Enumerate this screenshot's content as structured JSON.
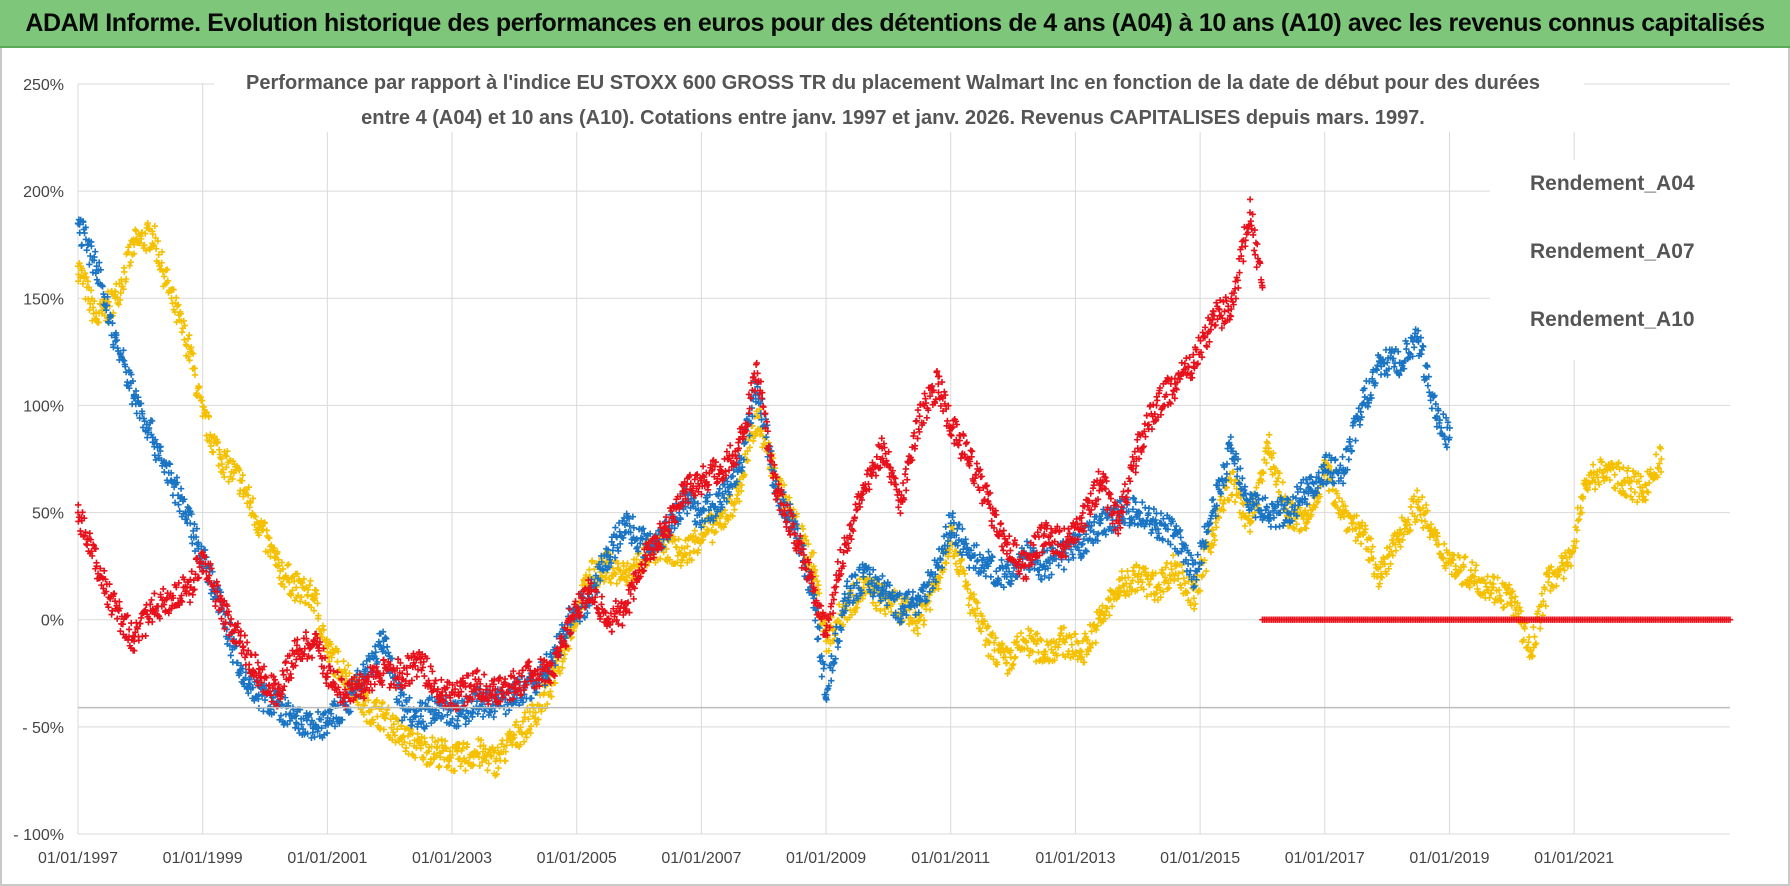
{
  "header": {
    "title": "ADAM Informe. Evolution historique des performances en euros pour des détentions de 4 ans (A04) à 10 ans (A10) avec les revenus connus capitalisés"
  },
  "colors": {
    "a04": "#f5c000",
    "a07": "#1a74c4",
    "a10": "#e8101a",
    "header_bg": "#7dc67a",
    "grid": "#d9d9d9"
  },
  "chart_data": {
    "type": "scatter",
    "title_line1": "Performance par rapport à l'indice EU STOXX 600 GROSS TR  du placement Walmart Inc en fonction de la date de début pour des durées",
    "title_line2": "entre 4 (A04) et 10 ans (A10). Cotations entre janv. 1997 et janv. 2026. Revenus CAPITALISES depuis mars. 1997.",
    "xlabel": "",
    "ylabel": "",
    "xlim": [
      1997.0,
      2023.5
    ],
    "ylim": [
      -100,
      250
    ],
    "y_ticks": [
      {
        "value": 250,
        "label": "250%"
      },
      {
        "value": 200,
        "label": "200%"
      },
      {
        "value": 150,
        "label": "150%"
      },
      {
        "value": 100,
        "label": "100%"
      },
      {
        "value": 50,
        "label": "50%"
      },
      {
        "value": 0,
        "label": "0%"
      },
      {
        "value": -50,
        "label": "- 50%"
      },
      {
        "value": -100,
        "label": "- 100%"
      }
    ],
    "x_ticks": [
      {
        "value": 1997,
        "label": "01/01/1997"
      },
      {
        "value": 1999,
        "label": "01/01/1999"
      },
      {
        "value": 2001,
        "label": "01/01/2001"
      },
      {
        "value": 2003,
        "label": "01/01/2003"
      },
      {
        "value": 2005,
        "label": "01/01/2005"
      },
      {
        "value": 2007,
        "label": "01/01/2007"
      },
      {
        "value": 2009,
        "label": "01/01/2009"
      },
      {
        "value": 2011,
        "label": "01/01/2011"
      },
      {
        "value": 2013,
        "label": "01/01/2013"
      },
      {
        "value": 2015,
        "label": "01/01/2015"
      },
      {
        "value": 2017,
        "label": "01/01/2017"
      },
      {
        "value": 2019,
        "label": "01/01/2019"
      },
      {
        "value": 2021,
        "label": "01/01/2021"
      }
    ],
    "reference_line": -41,
    "legend_position": "top-right",
    "series": [
      {
        "name": "Rendement_A04",
        "color": "#f5c000",
        "points": [
          [
            1997.0,
            165
          ],
          [
            1997.3,
            140
          ],
          [
            1997.6,
            150
          ],
          [
            1997.9,
            175
          ],
          [
            1998.2,
            180
          ],
          [
            1998.5,
            150
          ],
          [
            1998.8,
            125
          ],
          [
            1999.0,
            95
          ],
          [
            1999.3,
            75
          ],
          [
            1999.6,
            65
          ],
          [
            1999.9,
            45
          ],
          [
            2000.2,
            25
          ],
          [
            2000.5,
            15
          ],
          [
            2000.8,
            10
          ],
          [
            2001.0,
            -15
          ],
          [
            2001.3,
            -25
          ],
          [
            2001.6,
            -40
          ],
          [
            2001.9,
            -45
          ],
          [
            2002.2,
            -55
          ],
          [
            2002.5,
            -60
          ],
          [
            2002.8,
            -62
          ],
          [
            2003.1,
            -65
          ],
          [
            2003.4,
            -62
          ],
          [
            2003.7,
            -66
          ],
          [
            2004.0,
            -55
          ],
          [
            2004.3,
            -45
          ],
          [
            2004.6,
            -30
          ],
          [
            2004.9,
            -5
          ],
          [
            2005.2,
            20
          ],
          [
            2005.5,
            25
          ],
          [
            2005.8,
            20
          ],
          [
            2006.1,
            30
          ],
          [
            2006.4,
            35
          ],
          [
            2006.7,
            30
          ],
          [
            2007.0,
            40
          ],
          [
            2007.3,
            45
          ],
          [
            2007.6,
            60
          ],
          [
            2007.9,
            95
          ],
          [
            2008.2,
            65
          ],
          [
            2008.5,
            45
          ],
          [
            2008.8,
            25
          ],
          [
            2009.0,
            -10
          ],
          [
            2009.3,
            5
          ],
          [
            2009.6,
            15
          ],
          [
            2009.9,
            10
          ],
          [
            2010.2,
            5
          ],
          [
            2010.5,
            0
          ],
          [
            2010.8,
            20
          ],
          [
            2011.0,
            40
          ],
          [
            2011.3,
            10
          ],
          [
            2011.6,
            -10
          ],
          [
            2011.9,
            -20
          ],
          [
            2012.2,
            -10
          ],
          [
            2012.5,
            -15
          ],
          [
            2012.8,
            -10
          ],
          [
            2013.1,
            -15
          ],
          [
            2013.4,
            0
          ],
          [
            2013.7,
            15
          ],
          [
            2014.0,
            20
          ],
          [
            2014.3,
            15
          ],
          [
            2014.6,
            25
          ],
          [
            2014.9,
            10
          ],
          [
            2015.2,
            40
          ],
          [
            2015.5,
            65
          ],
          [
            2015.8,
            45
          ],
          [
            2016.1,
            80
          ],
          [
            2016.4,
            50
          ],
          [
            2016.7,
            45
          ],
          [
            2017.0,
            70
          ],
          [
            2017.3,
            50
          ],
          [
            2017.6,
            40
          ],
          [
            2017.9,
            20
          ],
          [
            2018.2,
            40
          ],
          [
            2018.5,
            55
          ],
          [
            2018.8,
            35
          ],
          [
            2019.1,
            25
          ],
          [
            2019.4,
            20
          ],
          [
            2019.7,
            15
          ],
          [
            2020.0,
            10
          ],
          [
            2020.3,
            -15
          ],
          [
            2020.6,
            20
          ],
          [
            2020.9,
            25
          ],
          [
            2021.2,
            65
          ],
          [
            2021.5,
            70
          ],
          [
            2021.8,
            65
          ],
          [
            2022.1,
            60
          ],
          [
            2022.4,
            75
          ]
        ]
      },
      {
        "name": "Rendement_A07",
        "color": "#1a74c4",
        "points": [
          [
            1997.0,
            185
          ],
          [
            1997.3,
            165
          ],
          [
            1997.6,
            130
          ],
          [
            1997.9,
            105
          ],
          [
            1998.2,
            85
          ],
          [
            1998.5,
            65
          ],
          [
            1998.8,
            45
          ],
          [
            1999.0,
            30
          ],
          [
            1999.3,
            5
          ],
          [
            1999.6,
            -25
          ],
          [
            1999.9,
            -35
          ],
          [
            2000.2,
            -40
          ],
          [
            2000.5,
            -48
          ],
          [
            2000.8,
            -50
          ],
          [
            2001.0,
            -48
          ],
          [
            2001.3,
            -40
          ],
          [
            2001.6,
            -25
          ],
          [
            2001.9,
            -10
          ],
          [
            2002.2,
            -40
          ],
          [
            2002.5,
            -45
          ],
          [
            2002.8,
            -40
          ],
          [
            2003.1,
            -45
          ],
          [
            2003.4,
            -38
          ],
          [
            2003.7,
            -40
          ],
          [
            2004.0,
            -35
          ],
          [
            2004.3,
            -30
          ],
          [
            2004.6,
            -20
          ],
          [
            2004.9,
            0
          ],
          [
            2005.2,
            10
          ],
          [
            2005.5,
            30
          ],
          [
            2005.8,
            45
          ],
          [
            2006.1,
            35
          ],
          [
            2006.4,
            40
          ],
          [
            2006.7,
            55
          ],
          [
            2007.0,
            50
          ],
          [
            2007.3,
            55
          ],
          [
            2007.6,
            70
          ],
          [
            2007.9,
            110
          ],
          [
            2008.2,
            60
          ],
          [
            2008.5,
            45
          ],
          [
            2008.8,
            10
          ],
          [
            2009.0,
            -35
          ],
          [
            2009.3,
            10
          ],
          [
            2009.6,
            20
          ],
          [
            2009.9,
            15
          ],
          [
            2010.2,
            5
          ],
          [
            2010.5,
            10
          ],
          [
            2010.8,
            25
          ],
          [
            2011.0,
            45
          ],
          [
            2011.3,
            30
          ],
          [
            2011.6,
            25
          ],
          [
            2011.9,
            20
          ],
          [
            2012.2,
            30
          ],
          [
            2012.5,
            25
          ],
          [
            2012.8,
            30
          ],
          [
            2013.1,
            35
          ],
          [
            2013.4,
            45
          ],
          [
            2013.7,
            50
          ],
          [
            2014.0,
            50
          ],
          [
            2014.3,
            45
          ],
          [
            2014.6,
            40
          ],
          [
            2014.9,
            20
          ],
          [
            2015.2,
            50
          ],
          [
            2015.5,
            80
          ],
          [
            2015.8,
            55
          ],
          [
            2016.1,
            50
          ],
          [
            2016.4,
            50
          ],
          [
            2016.7,
            60
          ],
          [
            2017.0,
            70
          ],
          [
            2017.3,
            70
          ],
          [
            2017.6,
            100
          ],
          [
            2017.9,
            120
          ],
          [
            2018.2,
            120
          ],
          [
            2018.5,
            130
          ],
          [
            2018.8,
            95
          ],
          [
            2019.0,
            85
          ]
        ]
      },
      {
        "name": "Rendement_A10",
        "color": "#e8101a",
        "points": [
          [
            1997.0,
            50
          ],
          [
            1997.3,
            25
          ],
          [
            1997.6,
            5
          ],
          [
            1997.9,
            -10
          ],
          [
            1998.2,
            5
          ],
          [
            1998.5,
            10
          ],
          [
            1998.8,
            15
          ],
          [
            1999.0,
            30
          ],
          [
            1999.3,
            5
          ],
          [
            1999.6,
            -10
          ],
          [
            1999.9,
            -25
          ],
          [
            2000.2,
            -35
          ],
          [
            2000.5,
            -15
          ],
          [
            2000.8,
            -10
          ],
          [
            2001.0,
            -25
          ],
          [
            2001.3,
            -35
          ],
          [
            2001.6,
            -30
          ],
          [
            2001.9,
            -25
          ],
          [
            2002.2,
            -25
          ],
          [
            2002.5,
            -20
          ],
          [
            2002.8,
            -35
          ],
          [
            2003.1,
            -35
          ],
          [
            2003.4,
            -30
          ],
          [
            2003.7,
            -35
          ],
          [
            2004.0,
            -30
          ],
          [
            2004.3,
            -25
          ],
          [
            2004.6,
            -25
          ],
          [
            2004.9,
            0
          ],
          [
            2005.2,
            15
          ],
          [
            2005.5,
            0
          ],
          [
            2005.8,
            5
          ],
          [
            2006.1,
            30
          ],
          [
            2006.4,
            40
          ],
          [
            2006.7,
            60
          ],
          [
            2007.0,
            65
          ],
          [
            2007.3,
            70
          ],
          [
            2007.6,
            80
          ],
          [
            2007.9,
            115
          ],
          [
            2008.2,
            60
          ],
          [
            2008.5,
            40
          ],
          [
            2008.8,
            15
          ],
          [
            2009.0,
            -5
          ],
          [
            2009.3,
            35
          ],
          [
            2009.6,
            60
          ],
          [
            2009.9,
            80
          ],
          [
            2010.2,
            55
          ],
          [
            2010.5,
            95
          ],
          [
            2010.8,
            110
          ],
          [
            2011.0,
            90
          ],
          [
            2011.3,
            75
          ],
          [
            2011.6,
            55
          ],
          [
            2011.9,
            35
          ],
          [
            2012.2,
            25
          ],
          [
            2012.5,
            40
          ],
          [
            2012.8,
            35
          ],
          [
            2013.1,
            45
          ],
          [
            2013.4,
            65
          ],
          [
            2013.7,
            45
          ],
          [
            2014.0,
            80
          ],
          [
            2014.3,
            100
          ],
          [
            2014.6,
            110
          ],
          [
            2014.9,
            120
          ],
          [
            2015.2,
            140
          ],
          [
            2015.5,
            145
          ],
          [
            2015.8,
            190
          ],
          [
            2016.0,
            155
          ]
        ]
      }
    ],
    "zero_series": {
      "name": "Rendement_A10",
      "color": "#e8101a",
      "y": 0,
      "x_start": 2016.0,
      "x_end": 2023.5
    }
  }
}
